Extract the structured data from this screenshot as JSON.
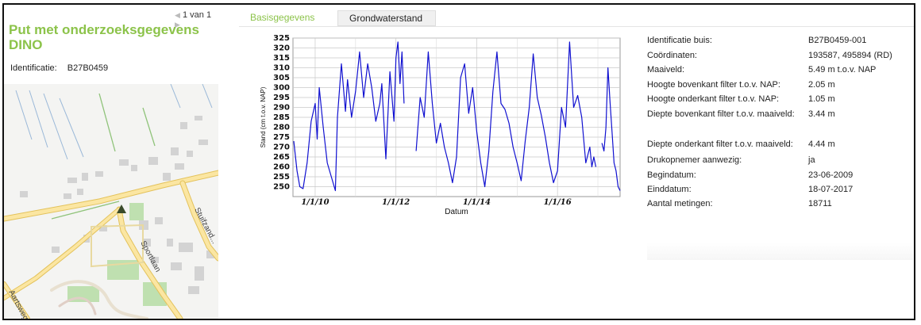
{
  "header": {
    "pager": "1 van 1",
    "title": "Put met onderzoeksgegevens DINO",
    "ident_label": "Identificatie:",
    "ident_value": "B27B0459"
  },
  "tabs": [
    {
      "label": "Basisgegevens",
      "active": true
    },
    {
      "label": "Grondwaterstand",
      "active": false
    }
  ],
  "map": {
    "street_labels": [
      "Stuifzand...",
      "Sportlaan",
      "Aartsweg"
    ],
    "colors": {
      "road_fill": "#fbe6a2",
      "road_edge": "#e3c25b",
      "green": "#8fc37a",
      "building": "#d3d3d3"
    }
  },
  "info": [
    {
      "label": "Identificatie buis:",
      "value": "B27B0459-001"
    },
    {
      "label": "Coördinaten:",
      "value": "193587, 495894 (RD)"
    },
    {
      "label": "Maaiveld:",
      "value": "5.49 m t.o.v. NAP"
    },
    {
      "label": "Hoogte bovenkant filter t.o.v. NAP:",
      "value": "2.05 m"
    },
    {
      "label": "Hoogte onderkant filter t.o.v. NAP:",
      "value": "1.05 m"
    },
    {
      "label": "Diepte bovenkant filter t.o.v. maaiveld:",
      "value": "3.44 m"
    },
    {
      "label": "Diepte onderkant filter t.o.v. maaiveld:",
      "value": "4.44 m"
    },
    {
      "label": "Drukopnemer aanwezig:",
      "value": "ja"
    },
    {
      "label": "Begindatum:",
      "value": "23-06-2009"
    },
    {
      "label": "Einddatum:",
      "value": "18-07-2017"
    },
    {
      "label": "Aantal metingen:",
      "value": "18711"
    }
  ],
  "chart_data": {
    "type": "line",
    "xlabel": "Datum",
    "ylabel": "Stand (cm t.o.v. NAP)",
    "ylim": [
      245,
      325
    ],
    "yticks": [
      250,
      255,
      260,
      265,
      270,
      275,
      280,
      285,
      290,
      295,
      300,
      305,
      310,
      315,
      320,
      325
    ],
    "xlim": [
      2009.45,
      2017.55
    ],
    "xticks": [
      {
        "x": 2010.0,
        "label": "1/1/10"
      },
      {
        "x": 2012.0,
        "label": "1/1/12"
      },
      {
        "x": 2014.0,
        "label": "1/1/14"
      },
      {
        "x": 2016.0,
        "label": "1/1/16"
      }
    ],
    "grid": true,
    "line_color": "#1010d0",
    "series": [
      {
        "x": [
          2009.47,
          2009.55,
          2009.62,
          2009.7,
          2009.8,
          2009.9,
          2010.0,
          2010.05,
          2010.1,
          2010.2,
          2010.3,
          2010.4,
          2010.5,
          2010.55,
          2010.65,
          2010.75,
          2010.8,
          2010.9,
          2011.0,
          2011.05,
          2011.1,
          2011.2,
          2011.3,
          2011.4,
          2011.5,
          2011.6,
          2011.65,
          2011.75,
          2011.85,
          2011.95,
          2012.0,
          2012.05,
          2012.1,
          2012.15,
          2012.2
        ],
        "y": [
          273,
          258,
          250,
          249,
          262,
          283,
          292,
          274,
          300,
          280,
          262,
          255,
          248,
          285,
          312,
          288,
          304,
          285,
          298,
          308,
          318,
          295,
          312,
          300,
          283,
          292,
          302,
          264,
          308,
          283,
          315,
          323,
          302,
          318,
          292
        ]
      },
      {
        "x": [
          2012.5,
          2012.6,
          2012.7,
          2012.8,
          2012.9,
          2013.0,
          2013.1,
          2013.2,
          2013.3,
          2013.4,
          2013.5,
          2013.6,
          2013.7,
          2013.8,
          2013.9,
          2014.0,
          2014.1,
          2014.2,
          2014.3,
          2014.4,
          2014.5,
          2014.6,
          2014.7,
          2014.8,
          2014.9,
          2015.0,
          2015.1,
          2015.2,
          2015.3,
          2015.4,
          2015.5,
          2015.6,
          2015.7,
          2015.8,
          2015.9,
          2016.0,
          2016.1,
          2016.2,
          2016.3,
          2016.4,
          2016.5,
          2016.6,
          2016.7,
          2016.8,
          2016.85,
          2016.9,
          2016.95
        ],
        "y": [
          268,
          295,
          285,
          318,
          292,
          272,
          282,
          270,
          262,
          252,
          265,
          305,
          312,
          287,
          300,
          278,
          262,
          250,
          268,
          298,
          318,
          292,
          289,
          282,
          270,
          262,
          253,
          273,
          290,
          317,
          295,
          286,
          275,
          262,
          252,
          258,
          290,
          280,
          323,
          290,
          296,
          285,
          262,
          270,
          260,
          265,
          260
        ]
      },
      {
        "x": [
          2017.1,
          2017.15,
          2017.2,
          2017.25,
          2017.3,
          2017.35,
          2017.4,
          2017.45,
          2017.5,
          2017.55
        ],
        "y": [
          272,
          268,
          280,
          310,
          293,
          278,
          262,
          258,
          250,
          248
        ]
      }
    ]
  }
}
